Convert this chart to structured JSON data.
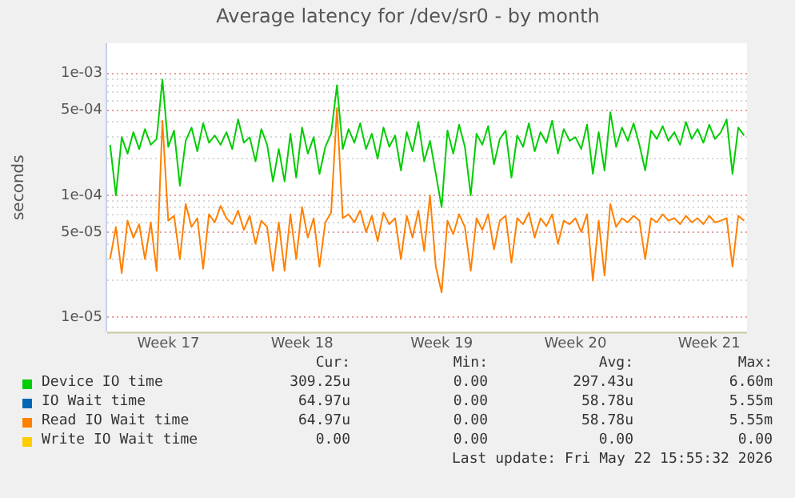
{
  "chart_data": {
    "type": "line",
    "title": "Average latency for /dev/sr0 - by month",
    "ylabel": "seconds",
    "log": "y",
    "grid": "y",
    "legend": "bottom",
    "marker": "none",
    "line_style": "solid",
    "ylim": [
      7.6e-06,
      0.00177
    ],
    "yticks": [
      {
        "value": 1e-05,
        "label": "1e-05"
      },
      {
        "value": 2e-05,
        "label": null
      },
      {
        "value": 3e-05,
        "label": null
      },
      {
        "value": 4e-05,
        "label": null
      },
      {
        "value": 5e-05,
        "label": "5e-05"
      },
      {
        "value": 6e-05,
        "label": null
      },
      {
        "value": 7e-05,
        "label": null
      },
      {
        "value": 8e-05,
        "label": null
      },
      {
        "value": 9e-05,
        "label": null
      },
      {
        "value": 0.0001,
        "label": "1e-04"
      },
      {
        "value": 0.0002,
        "label": null
      },
      {
        "value": 0.0003,
        "label": null
      },
      {
        "value": 0.0004,
        "label": null
      },
      {
        "value": 0.0005,
        "label": "5e-04"
      },
      {
        "value": 0.0006,
        "label": null
      },
      {
        "value": 0.0007,
        "label": null
      },
      {
        "value": 0.0008,
        "label": null
      },
      {
        "value": 0.0009,
        "label": null
      },
      {
        "value": 0.001,
        "label": "1e-03"
      }
    ],
    "categories": [
      null,
      null,
      null,
      null,
      null,
      null,
      null,
      null,
      null,
      null,
      "Week 17",
      null,
      null,
      null,
      null,
      null,
      null,
      null,
      null,
      null,
      null,
      null,
      null,
      null,
      null,
      null,
      null,
      null,
      null,
      null,
      null,
      null,
      null,
      "Week 18",
      null,
      null,
      null,
      null,
      null,
      null,
      null,
      null,
      null,
      null,
      null,
      null,
      null,
      null,
      null,
      null,
      null,
      null,
      null,
      null,
      null,
      null,
      null,
      "Week 19",
      null,
      null,
      null,
      null,
      null,
      null,
      null,
      null,
      null,
      null,
      null,
      null,
      null,
      null,
      null,
      null,
      null,
      null,
      null,
      null,
      null,
      null,
      "Week 20",
      null,
      null,
      null,
      null,
      null,
      null,
      null,
      null,
      null,
      null,
      null,
      null,
      null,
      null,
      null,
      null,
      null,
      null,
      null,
      null,
      null,
      null,
      "Week 21",
      null,
      null,
      null,
      null,
      null,
      null
    ],
    "series": [
      {
        "name": "Device IO time",
        "color": "#00cc00",
        "values": [
          0.00026,
          0.0001,
          0.0003,
          0.00022,
          0.00033,
          0.00024,
          0.00035,
          0.00026,
          0.00029,
          0.00089,
          0.00025,
          0.00034,
          0.00012,
          0.00028,
          0.00036,
          0.00023,
          0.00039,
          0.00027,
          0.00031,
          0.00026,
          0.00033,
          0.00024,
          0.00042,
          0.00027,
          0.0003,
          0.00019,
          0.00035,
          0.00026,
          0.00013,
          0.00024,
          0.00013,
          0.00032,
          0.00014,
          0.00036,
          0.00022,
          0.0003,
          0.00015,
          0.00025,
          0.00032,
          0.0008,
          0.00024,
          0.00035,
          0.00027,
          0.00039,
          0.00024,
          0.00032,
          0.0002,
          0.00036,
          0.00025,
          0.00031,
          0.00016,
          0.00033,
          0.00023,
          0.0004,
          0.00019,
          0.00028,
          0.00015,
          8e-05,
          0.00034,
          0.00022,
          0.00038,
          0.00025,
          0.0001,
          0.00032,
          0.00026,
          0.00037,
          0.00018,
          0.00029,
          0.00034,
          0.00014,
          0.00031,
          0.00025,
          0.00039,
          0.00023,
          0.00033,
          0.00027,
          0.00041,
          0.00022,
          0.00035,
          0.00028,
          0.0003,
          0.00024,
          0.00038,
          0.00015,
          0.00033,
          0.00016,
          0.00048,
          0.00025,
          0.00036,
          0.00028,
          0.00039,
          0.00026,
          0.00016,
          0.00034,
          0.00029,
          0.00037,
          0.00028,
          0.00033,
          0.00026,
          0.0004,
          0.00029,
          0.00035,
          0.00027,
          0.00038,
          0.00029,
          0.00033,
          0.00042,
          0.00015,
          0.00036,
          0.00031
        ]
      },
      {
        "name": "IO Wait time",
        "color": "#0066b3",
        "values": [
          null,
          null,
          null,
          null,
          null,
          null,
          null,
          null,
          null,
          null,
          null,
          null,
          null,
          null,
          null,
          null,
          null,
          null,
          null,
          null,
          null,
          null,
          null,
          null,
          null,
          null,
          null,
          null,
          null,
          null,
          null,
          null,
          null,
          null,
          null,
          null,
          null,
          null,
          null,
          null,
          null,
          null,
          null,
          null,
          null,
          null,
          null,
          null,
          null,
          null,
          null,
          null,
          null,
          null,
          null,
          null,
          null,
          null,
          null,
          null,
          null,
          null,
          null,
          null,
          null,
          null,
          null,
          null,
          null,
          null,
          null,
          null,
          null,
          null,
          null,
          null,
          null,
          null,
          null,
          null,
          null,
          null,
          null,
          null,
          null,
          null,
          null,
          null,
          null,
          null,
          null,
          null,
          null,
          null,
          null,
          null,
          null,
          null,
          null,
          null,
          null,
          null,
          null,
          null,
          null,
          null,
          null,
          null,
          null,
          null
        ]
      },
      {
        "name": "Read IO Wait time",
        "color": "#ff8000",
        "values": [
          3e-05,
          5.5e-05,
          2.3e-05,
          6.2e-05,
          4.5e-05,
          5.8e-05,
          3e-05,
          6e-05,
          2.4e-05,
          0.00041,
          6.2e-05,
          6.8e-05,
          3e-05,
          8.5e-05,
          5.5e-05,
          6.5e-05,
          2.5e-05,
          7e-05,
          6e-05,
          8.2e-05,
          6.5e-05,
          5.8e-05,
          7.5e-05,
          5.2e-05,
          6.8e-05,
          4e-05,
          6.2e-05,
          5.5e-05,
          2.4e-05,
          6e-05,
          2.4e-05,
          7e-05,
          3e-05,
          8e-05,
          4.5e-05,
          6.5e-05,
          2.6e-05,
          6e-05,
          7.2e-05,
          0.00052,
          6.5e-05,
          7e-05,
          6e-05,
          7.5e-05,
          5e-05,
          6.8e-05,
          4.2e-05,
          7.2e-05,
          5.8e-05,
          6.5e-05,
          3e-05,
          6.8e-05,
          4.5e-05,
          7.5e-05,
          3.5e-05,
          0.0001,
          2.6e-05,
          1.6e-05,
          6.2e-05,
          4.8e-05,
          7e-05,
          5.5e-05,
          2.4e-05,
          6.5e-05,
          5.2e-05,
          7e-05,
          3.6e-05,
          6.2e-05,
          6.8e-05,
          2.8e-05,
          6.5e-05,
          5.8e-05,
          7.2e-05,
          4.5e-05,
          6.5e-05,
          5.6e-05,
          7e-05,
          4e-05,
          6.2e-05,
          5.8e-05,
          6.5e-05,
          5e-05,
          7e-05,
          2e-05,
          6.2e-05,
          2.2e-05,
          8.5e-05,
          5.5e-05,
          6.5e-05,
          6e-05,
          6.8e-05,
          6.2e-05,
          3e-05,
          6.5e-05,
          6e-05,
          7e-05,
          6.2e-05,
          6.5e-05,
          5.8e-05,
          6.8e-05,
          6e-05,
          6.5e-05,
          5.8e-05,
          6.8e-05,
          6e-05,
          6.2e-05,
          6.5e-05,
          2.6e-05,
          6.8e-05,
          6.2e-05
        ]
      },
      {
        "name": "Write IO Wait time",
        "color": "#ffcc00",
        "values": [
          null,
          null,
          null,
          null,
          null,
          null,
          null,
          null,
          null,
          null,
          null,
          null,
          null,
          null,
          null,
          null,
          null,
          null,
          null,
          null,
          null,
          null,
          null,
          null,
          null,
          null,
          null,
          null,
          null,
          null,
          null,
          null,
          null,
          null,
          null,
          null,
          null,
          null,
          null,
          null,
          null,
          null,
          null,
          null,
          null,
          null,
          null,
          null,
          null,
          null,
          null,
          null,
          null,
          null,
          null,
          null,
          null,
          null,
          null,
          null,
          null,
          null,
          null,
          null,
          null,
          null,
          null,
          null,
          null,
          null,
          null,
          null,
          null,
          null,
          null,
          null,
          null,
          null,
          null,
          null,
          null,
          null,
          null,
          null,
          null,
          null,
          null,
          null,
          null,
          null,
          null,
          null,
          null,
          null,
          null,
          null,
          null,
          null,
          null,
          null,
          null,
          null,
          null,
          null,
          null,
          null,
          null,
          null,
          null,
          null
        ]
      }
    ],
    "annotations": [
      "Cur:",
      "Min:",
      "Avg:",
      "Max:",
      "309.25u",
      "0.00",
      "297.43u",
      "6.60m",
      "64.97u",
      "0.00",
      "58.78u",
      "5.55m",
      "64.97u",
      "0.00",
      "58.78u",
      "5.55m",
      "0.00",
      "0.00",
      "0.00",
      "0.00",
      "Last update: Fri May 22 15:55:32 2026"
    ]
  }
}
